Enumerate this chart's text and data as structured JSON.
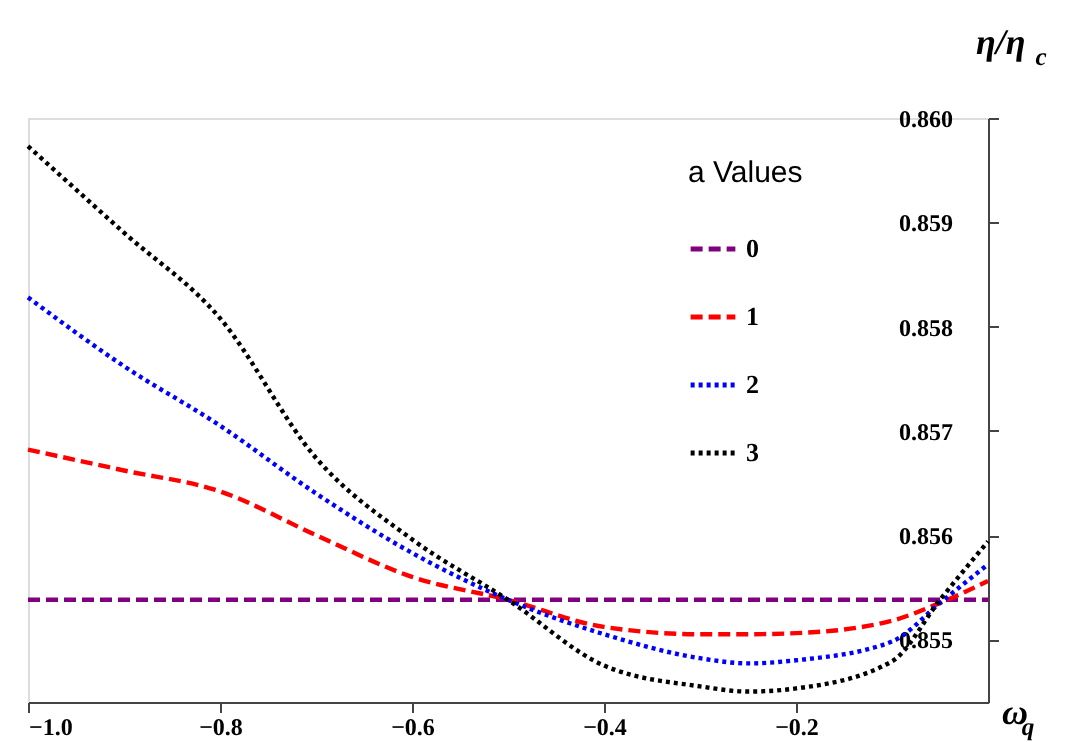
{
  "chart_data": {
    "type": "line",
    "xlabel": "ω$_{q}$",
    "ylabel": "η/η$_{c}$",
    "legend_title": "a Values",
    "legend": "top right",
    "grid": false,
    "marker": "none",
    "xlim": [
      -1.0,
      0
    ],
    "ylim": [
      0.8544,
      0.86
    ],
    "xticks": [
      {
        "value": -1.0,
        "label": "−1.0"
      },
      -0.8,
      -0.6,
      -0.4,
      -0.2
    ],
    "yticks": [
      0.855,
      0.856,
      0.857,
      0.858,
      0.859,
      {
        "value": 0.86,
        "label": "0.860"
      }
    ],
    "x": [
      -1.0,
      -0.9,
      -0.8,
      -0.7,
      -0.6,
      -0.5,
      -0.4,
      -0.3,
      -0.25,
      -0.2,
      -0.1,
      -0.05,
      0
    ],
    "series": [
      {
        "name": "0",
        "color": "#800080",
        "line_style": "dashed",
        "values": [
          0.85538,
          0.85538,
          0.85538,
          0.85538,
          0.85538,
          0.85538,
          0.85538,
          0.85538,
          0.85538,
          0.85538,
          0.85538,
          0.85538,
          0.85538
        ]
      },
      {
        "name": "1",
        "color": "#ff0000",
        "line_style": "dashed",
        "values": [
          0.85682,
          0.85662,
          0.85642,
          0.856,
          0.8556,
          0.85538,
          0.85512,
          0.85505,
          0.85505,
          0.85506,
          0.85518,
          0.85535,
          0.85556
        ]
      },
      {
        "name": "2",
        "color": "#0000ff",
        "line_style": "dotted",
        "values": [
          0.85828,
          0.85762,
          0.85705,
          0.8564,
          0.85583,
          0.85538,
          0.85505,
          0.85482,
          0.85477,
          0.8548,
          0.85498,
          0.85535,
          0.85572
        ]
      },
      {
        "name": "3",
        "color": "#000000",
        "line_style": "dotted",
        "values": [
          0.85973,
          0.8589,
          0.85808,
          0.85674,
          0.85596,
          0.85538,
          0.85475,
          0.85455,
          0.8545,
          0.85453,
          0.85479,
          0.85538,
          0.85594
        ]
      }
    ]
  }
}
